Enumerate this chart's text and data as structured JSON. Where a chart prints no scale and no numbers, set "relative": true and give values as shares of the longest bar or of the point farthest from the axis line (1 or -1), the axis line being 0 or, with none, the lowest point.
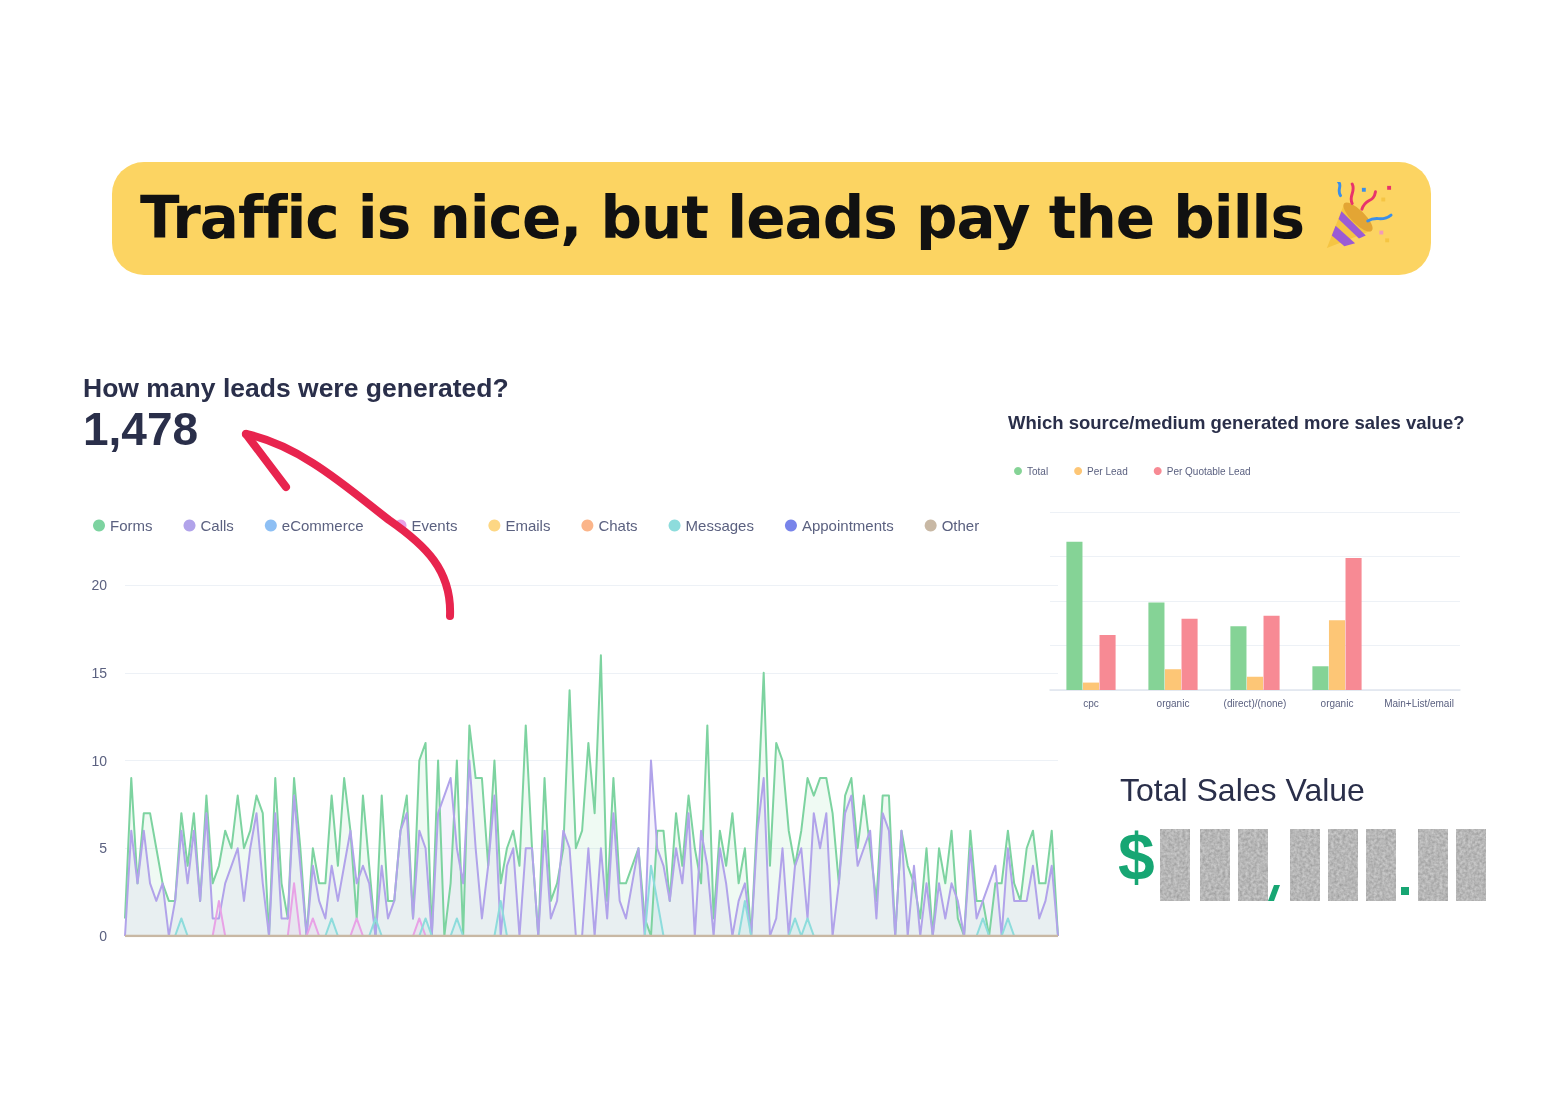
{
  "chart_data": [
    {
      "type": "other",
      "title": "Traffic is nice, but leads pay the bills"
    },
    {
      "type": "area",
      "title": "How many leads were generated?",
      "subtitle": "1,478",
      "categories": [
        null,
        null,
        null,
        null,
        null,
        null,
        null,
        null,
        null,
        null,
        null,
        null,
        null,
        null,
        null,
        null,
        null,
        null,
        null,
        null,
        null,
        null,
        null,
        null,
        null,
        null,
        null,
        null,
        null,
        null,
        null,
        null,
        null,
        null,
        null,
        null,
        null,
        null,
        null,
        null,
        null,
        null,
        null,
        null,
        null,
        null,
        null,
        null,
        null,
        null,
        null,
        null,
        null,
        null,
        null,
        null,
        null,
        null,
        null,
        null,
        null,
        null,
        null,
        null,
        null,
        null,
        null,
        null,
        null,
        null,
        null,
        null,
        null,
        null,
        null,
        null,
        null,
        null,
        null,
        null,
        null,
        null,
        null,
        null,
        null,
        null,
        null,
        null,
        null,
        null,
        null,
        null,
        null,
        null,
        null,
        null,
        null,
        null,
        null,
        null,
        null,
        null,
        null,
        null,
        null,
        null,
        null,
        null,
        null,
        null,
        null,
        null,
        null,
        null,
        null,
        null,
        null,
        null,
        null,
        null,
        null,
        null,
        null,
        null,
        null,
        null,
        null,
        null,
        null,
        null,
        null,
        null,
        null,
        null,
        null,
        null,
        null,
        null,
        null,
        null,
        null,
        null,
        null,
        null,
        null,
        null,
        null,
        null,
        null,
        null
      ],
      "series": [
        {
          "name": "Forms",
          "color": "#7dd3a0",
          "values": [
            1,
            9,
            3,
            7,
            7,
            5,
            3,
            2,
            2,
            7,
            4,
            7,
            2,
            8,
            3,
            4,
            6,
            5,
            8,
            5,
            6,
            8,
            7,
            0,
            9,
            3,
            1,
            9,
            5,
            0,
            5,
            3,
            3,
            8,
            4,
            9,
            6,
            1,
            8,
            4,
            0,
            8,
            2,
            2,
            6,
            8,
            1,
            10,
            11,
            0,
            10,
            0,
            3,
            10,
            0,
            12,
            9,
            9,
            4,
            10,
            3,
            5,
            6,
            4,
            12,
            5,
            0,
            9,
            2,
            3,
            5,
            14,
            5,
            6,
            11,
            7,
            16,
            2,
            9,
            3,
            3,
            4,
            5,
            1,
            0,
            6,
            6,
            2,
            7,
            4,
            8,
            5,
            3,
            12,
            1,
            6,
            4,
            7,
            3,
            5,
            0,
            7,
            15,
            4,
            11,
            10,
            6,
            4,
            6,
            9,
            8,
            9,
            9,
            7,
            3,
            8,
            9,
            5,
            8,
            5,
            2,
            8,
            8,
            0,
            6,
            4,
            3,
            1,
            5,
            0,
            5,
            3,
            6,
            1,
            0,
            6,
            2,
            2,
            0,
            3,
            3,
            6,
            3,
            2,
            5,
            6,
            3,
            3,
            6,
            0
          ]
        },
        {
          "name": "Calls",
          "color": "#b1a3ea",
          "values": [
            0,
            6,
            3,
            6,
            3,
            2,
            3,
            0,
            2,
            6,
            3,
            6,
            2,
            7,
            1,
            1,
            3,
            4,
            5,
            2,
            5,
            7,
            3,
            0,
            7,
            1,
            1,
            8,
            4,
            0,
            4,
            2,
            1,
            4,
            2,
            4,
            6,
            3,
            4,
            3,
            0,
            4,
            1,
            2,
            6,
            7,
            1,
            6,
            5,
            0,
            7,
            8,
            9,
            5,
            3,
            10,
            5,
            1,
            4,
            8,
            0,
            4,
            5,
            0,
            5,
            5,
            0,
            6,
            1,
            2,
            6,
            5,
            0,
            0,
            5,
            0,
            5,
            1,
            7,
            2,
            1,
            3,
            5,
            0,
            10,
            5,
            4,
            2,
            5,
            3,
            7,
            0,
            6,
            4,
            0,
            5,
            3,
            0,
            2,
            3,
            0,
            6,
            9,
            0,
            1,
            5,
            0,
            4,
            5,
            1,
            7,
            5,
            7,
            0,
            3,
            7,
            8,
            4,
            5,
            6,
            1,
            7,
            6,
            0,
            6,
            0,
            4,
            0,
            3,
            0,
            3,
            1,
            3,
            2,
            0,
            5,
            1,
            2,
            3,
            4,
            0,
            5,
            2,
            2,
            2,
            4,
            1,
            2,
            4,
            0
          ]
        },
        {
          "name": "eCommerce",
          "color": "#8dbff4",
          "values": [
            null,
            null,
            null,
            null,
            null,
            null,
            null,
            null,
            null,
            null,
            null,
            null,
            null,
            null,
            null,
            null,
            null,
            null,
            null,
            null,
            null,
            null,
            null,
            null,
            null,
            null,
            null,
            null,
            null,
            null,
            null,
            null,
            null,
            null,
            null,
            null,
            null,
            null,
            null,
            null,
            null,
            null,
            null,
            null,
            null,
            null,
            null,
            null,
            null,
            null,
            null,
            null,
            null,
            null,
            null,
            null,
            null,
            null,
            null,
            null,
            null,
            null,
            null,
            null,
            null,
            null,
            null,
            null,
            null,
            null,
            null,
            null,
            null,
            null,
            null,
            null,
            null,
            null,
            null,
            null,
            null,
            null,
            null,
            null,
            null,
            null,
            null,
            null,
            null,
            null,
            null,
            null,
            null,
            null,
            null,
            null,
            null,
            null,
            null,
            null,
            null,
            null,
            null,
            null,
            null,
            null,
            null,
            null,
            null,
            null,
            null,
            null,
            null,
            null,
            null,
            null,
            null,
            null,
            null,
            null,
            null,
            null,
            null,
            null,
            null,
            null,
            null,
            null,
            null,
            null,
            null,
            null,
            null,
            null,
            null,
            null,
            null,
            null,
            null,
            null,
            null,
            null,
            null,
            null,
            null,
            null,
            null,
            null,
            null,
            null
          ]
        },
        {
          "name": "Events",
          "color": "#e8a2e6",
          "values": [
            0,
            0,
            0,
            0,
            0,
            0,
            0,
            0,
            0,
            0,
            0,
            0,
            0,
            0,
            0,
            2,
            0,
            0,
            0,
            0,
            0,
            0,
            0,
            0,
            0,
            0,
            0,
            3,
            0,
            0,
            1,
            0,
            0,
            0,
            0,
            0,
            0,
            1,
            0,
            0,
            0,
            0,
            0,
            0,
            0,
            0,
            0,
            1,
            0,
            0,
            0,
            0,
            0,
            0,
            0,
            0,
            0,
            0,
            0,
            0,
            0,
            0,
            0,
            0,
            0,
            0,
            0,
            0,
            0,
            0,
            0,
            0,
            0,
            0,
            0,
            0,
            0,
            0,
            0,
            0,
            0,
            0,
            0,
            0,
            0,
            0,
            0,
            0,
            0,
            0,
            0,
            0,
            0,
            0,
            0,
            0,
            0,
            0,
            0,
            0,
            0,
            0,
            0,
            0,
            0,
            0,
            0,
            0,
            0,
            0,
            0,
            0,
            0,
            0,
            0,
            0,
            0,
            0,
            0,
            0,
            0,
            0,
            0,
            0,
            0,
            0,
            0,
            0,
            0,
            0,
            0,
            0,
            0,
            0,
            0,
            0,
            0,
            0,
            0,
            0,
            0,
            0,
            0,
            0,
            0,
            0,
            0,
            0,
            0,
            0
          ]
        },
        {
          "name": "Emails",
          "color": "#fdd784",
          "values": [
            null,
            null,
            null,
            null,
            null,
            null,
            null,
            null,
            null,
            null,
            null,
            null,
            null,
            null,
            null,
            null,
            null,
            null,
            null,
            null,
            null,
            null,
            null,
            null,
            null,
            null,
            null,
            null,
            null,
            null,
            null,
            null,
            null,
            null,
            null,
            null,
            null,
            null,
            null,
            null,
            null,
            null,
            null,
            null,
            null,
            null,
            null,
            null,
            null,
            null,
            null,
            null,
            null,
            null,
            null,
            null,
            null,
            null,
            null,
            null,
            null,
            null,
            null,
            null,
            null,
            null,
            null,
            null,
            null,
            null,
            null,
            null,
            null,
            null,
            null,
            null,
            null,
            null,
            null,
            null,
            null,
            null,
            null,
            null,
            null,
            null,
            null,
            null,
            null,
            null,
            null,
            null,
            null,
            null,
            null,
            null,
            null,
            null,
            null,
            null,
            null,
            null,
            null,
            null,
            null,
            null,
            null,
            null,
            null,
            null,
            null,
            null,
            null,
            null,
            null,
            null,
            null,
            null,
            null,
            null,
            null,
            null,
            null,
            null,
            null,
            null,
            null,
            null,
            null,
            null,
            null,
            null,
            null,
            null,
            null,
            null,
            null,
            null,
            null,
            null,
            null,
            null,
            null,
            null,
            null,
            null,
            null,
            null,
            null,
            null
          ]
        },
        {
          "name": "Chats",
          "color": "#fbb58a",
          "values": [
            null,
            null,
            null,
            null,
            null,
            null,
            null,
            null,
            null,
            null,
            null,
            null,
            null,
            null,
            null,
            null,
            null,
            null,
            null,
            null,
            null,
            null,
            null,
            null,
            null,
            null,
            null,
            null,
            null,
            null,
            null,
            null,
            null,
            null,
            null,
            null,
            null,
            null,
            null,
            null,
            null,
            null,
            null,
            null,
            null,
            null,
            null,
            null,
            null,
            null,
            null,
            null,
            null,
            null,
            null,
            null,
            null,
            null,
            null,
            null,
            null,
            null,
            null,
            null,
            null,
            null,
            null,
            null,
            null,
            null,
            null,
            null,
            null,
            null,
            null,
            null,
            null,
            null,
            null,
            null,
            null,
            null,
            null,
            null,
            null,
            null,
            null,
            null,
            null,
            null,
            null,
            null,
            null,
            null,
            null,
            null,
            null,
            null,
            null,
            null,
            null,
            null,
            null,
            null,
            null,
            null,
            null,
            null,
            null,
            null,
            null,
            null,
            null,
            null,
            null,
            null,
            null,
            null,
            null,
            null,
            null,
            null,
            null,
            null,
            null,
            null,
            null,
            null,
            null,
            null,
            null,
            null,
            null,
            null,
            null,
            null,
            null,
            null,
            null,
            null,
            null,
            null,
            null,
            null,
            null,
            null,
            null,
            null,
            null,
            null
          ]
        },
        {
          "name": "Messages",
          "color": "#8ddcdc",
          "values": [
            0,
            0,
            0,
            0,
            0,
            0,
            0,
            0,
            0,
            1,
            0,
            0,
            0,
            0,
            0,
            0,
            0,
            0,
            0,
            0,
            0,
            0,
            0,
            0,
            0,
            0,
            0,
            0,
            0,
            0,
            0,
            0,
            0,
            1,
            0,
            0,
            0,
            0,
            0,
            0,
            1,
            0,
            0,
            0,
            0,
            0,
            0,
            0,
            1,
            0,
            0,
            0,
            0,
            1,
            0,
            0,
            0,
            0,
            0,
            0,
            2,
            0,
            0,
            0,
            0,
            0,
            0,
            0,
            0,
            0,
            0,
            0,
            0,
            0,
            0,
            0,
            0,
            0,
            0,
            0,
            0,
            0,
            0,
            0,
            4,
            2,
            0,
            0,
            0,
            0,
            0,
            0,
            0,
            0,
            0,
            0,
            0,
            0,
            0,
            2,
            0,
            0,
            0,
            0,
            0,
            0,
            0,
            1,
            0,
            1,
            0,
            0,
            0,
            0,
            0,
            0,
            0,
            0,
            0,
            0,
            0,
            0,
            0,
            0,
            0,
            0,
            0,
            0,
            0,
            0,
            0,
            0,
            0,
            0,
            0,
            0,
            0,
            1,
            0,
            0,
            0,
            1,
            0,
            0,
            0,
            0,
            0,
            0,
            0,
            0
          ]
        },
        {
          "name": "Appointments",
          "color": "#7884ea",
          "values": [
            null,
            null,
            null,
            null,
            null,
            null,
            null,
            null,
            null,
            null,
            null,
            null,
            null,
            null,
            null,
            null,
            null,
            null,
            null,
            null,
            null,
            null,
            null,
            null,
            null,
            null,
            null,
            null,
            null,
            null,
            null,
            null,
            null,
            null,
            null,
            null,
            null,
            null,
            null,
            null,
            null,
            null,
            null,
            null,
            null,
            null,
            null,
            null,
            null,
            null,
            null,
            null,
            null,
            null,
            null,
            null,
            null,
            null,
            null,
            null,
            null,
            null,
            null,
            null,
            null,
            null,
            null,
            null,
            null,
            null,
            null,
            null,
            null,
            null,
            null,
            null,
            null,
            null,
            null,
            null,
            null,
            null,
            null,
            null,
            null,
            null,
            null,
            null,
            null,
            null,
            null,
            null,
            null,
            null,
            null,
            null,
            null,
            null,
            null,
            null,
            null,
            null,
            null,
            null,
            null,
            null,
            null,
            null,
            null,
            null,
            null,
            null,
            null,
            null,
            null,
            null,
            null,
            null,
            null,
            null,
            null,
            null,
            null,
            null,
            null,
            null,
            null,
            null,
            null,
            null,
            null,
            null,
            null,
            null,
            null,
            null,
            null,
            null,
            null,
            null,
            null,
            null,
            null,
            null,
            null,
            null,
            null,
            null,
            null,
            null
          ]
        },
        {
          "name": "Other",
          "type": "line",
          "color": "#c8b8a4",
          "values": [
            0,
            0,
            0,
            0,
            0,
            0,
            0,
            0,
            0,
            0,
            0,
            0,
            0,
            0,
            0,
            0,
            0,
            0,
            0,
            0,
            0,
            0,
            0,
            0,
            0,
            0,
            0,
            0,
            0,
            0,
            0,
            0,
            0,
            0,
            0,
            0,
            0,
            0,
            0,
            0,
            0,
            0,
            0,
            0,
            0,
            0,
            0,
            0,
            0,
            0,
            0,
            0,
            0,
            0,
            0,
            0,
            0,
            0,
            0,
            0,
            0,
            0,
            0,
            0,
            0,
            0,
            0,
            0,
            0,
            0,
            0,
            0,
            0,
            0,
            0,
            0,
            0,
            0,
            0,
            0,
            0,
            0,
            0,
            0,
            0,
            0,
            0,
            0,
            0,
            0,
            0,
            0,
            0,
            0,
            0,
            0,
            0,
            0,
            0,
            0,
            0,
            0,
            0,
            0,
            0,
            0,
            0,
            0,
            0,
            0,
            0,
            0,
            0,
            0,
            0,
            0,
            0,
            0,
            0,
            0,
            0,
            0,
            0,
            0,
            0,
            0,
            0,
            0,
            0,
            0,
            0,
            0,
            0,
            0,
            0,
            0,
            0,
            0,
            0,
            0,
            0,
            0,
            0,
            0,
            0,
            0,
            0,
            0,
            0,
            0
          ]
        }
      ],
      "ylim": [
        0,
        20
      ],
      "yticks": [
        0,
        5,
        10,
        15,
        20
      ],
      "grid": "y",
      "legend": "top left",
      "tick_labels": "y"
    },
    {
      "type": "bar",
      "title": "Which source/medium generated more sales value?",
      "categories": [
        "cpc",
        "organic",
        "(direct)/(none)",
        "organic",
        "Main+List/email"
      ],
      "series": [
        {
          "name": "Total",
          "color": "#85d396",
          "values": [
            1,
            0.59,
            0.43,
            0.16,
            0
          ]
        },
        {
          "name": "Per Lead",
          "color": "#fdc676",
          "values": [
            0.05,
            0.14,
            0.09,
            0.47,
            0
          ]
        },
        {
          "name": "Per Quotable Lead",
          "color": "#f78a94",
          "values": [
            0.37,
            0.48,
            0.5,
            0.89,
            0
          ]
        }
      ],
      "relative": true,
      "grid": "y",
      "legend": "top left"
    },
    {
      "type": "other",
      "title": "Total Sales Value",
      "annotations": [
        "$"
      ]
    }
  ]
}
